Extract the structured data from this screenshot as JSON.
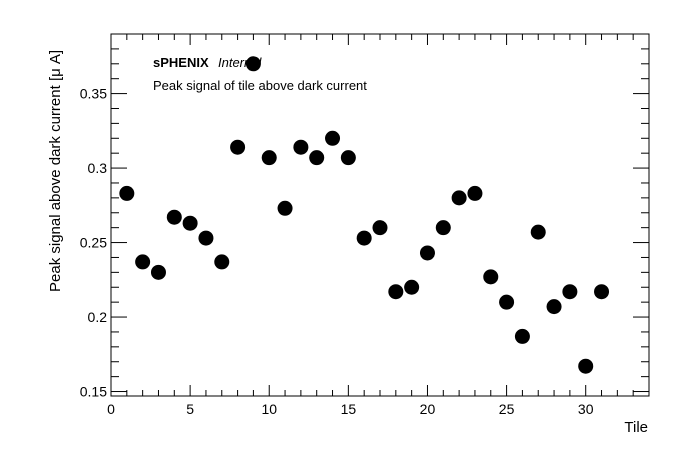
{
  "chart_data": {
    "type": "scatter",
    "xlabel": "Tile",
    "ylabel": "Peak signal above dark current [μ A]",
    "xlim": [
      0,
      34
    ],
    "ylim": [
      0.147,
      0.39
    ],
    "x_ticks": [
      "0",
      "5",
      "10",
      "15",
      "20",
      "25",
      "30"
    ],
    "y_ticks": [
      "0.15",
      "0.2",
      "0.25",
      "0.3",
      "0.35"
    ],
    "annotations": {
      "experiment": "sPHENIX",
      "status": "Internal",
      "description": "Peak signal of tile above dark current"
    },
    "marker_color": "#000000",
    "grid": false,
    "x": [
      1,
      2,
      3,
      4,
      5,
      6,
      7,
      8,
      9,
      10,
      11,
      12,
      13,
      14,
      15,
      16,
      17,
      18,
      19,
      20,
      21,
      22,
      23,
      24,
      25,
      26,
      27,
      28,
      29,
      30,
      31
    ],
    "y": [
      0.283,
      0.237,
      0.23,
      0.267,
      0.263,
      0.253,
      0.237,
      0.314,
      0.37,
      0.307,
      0.273,
      0.314,
      0.307,
      0.32,
      0.307,
      0.253,
      0.26,
      0.217,
      0.22,
      0.243,
      0.26,
      0.28,
      0.283,
      0.227,
      0.21,
      0.187,
      0.257,
      0.207,
      0.217,
      0.167,
      0.217
    ]
  }
}
